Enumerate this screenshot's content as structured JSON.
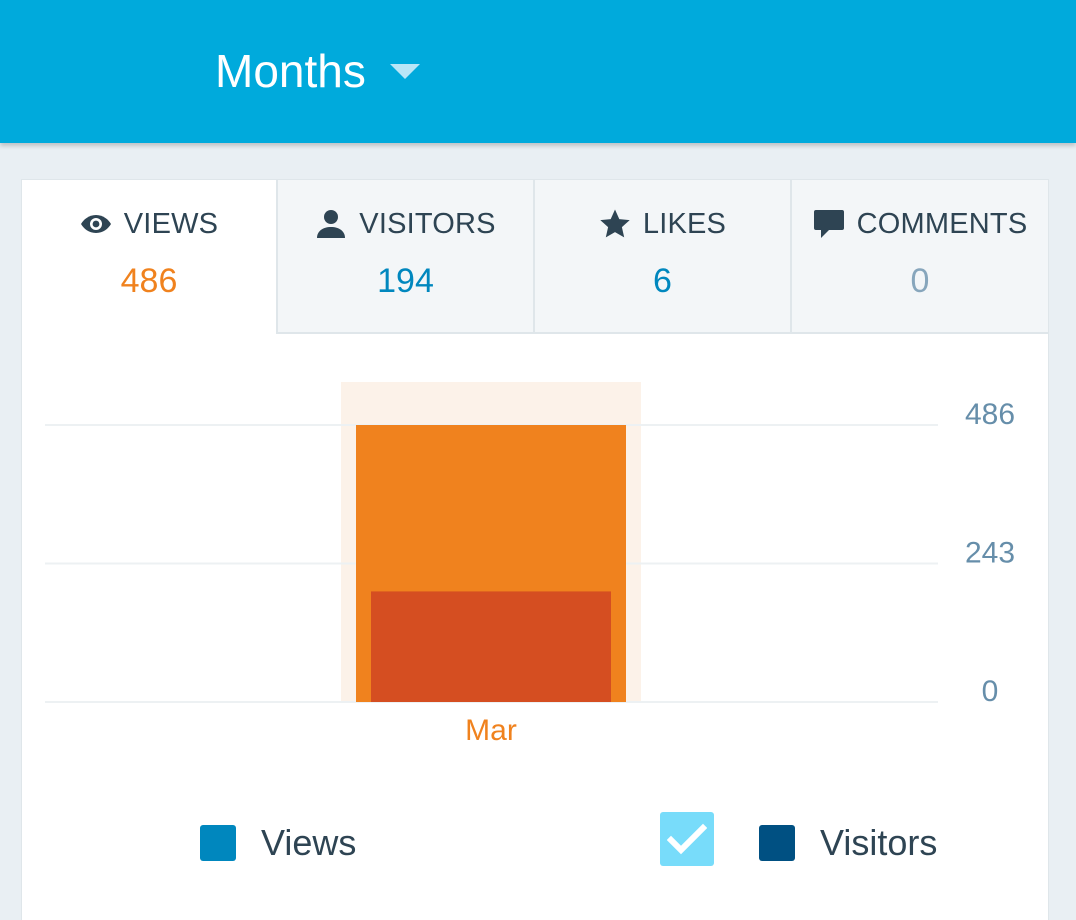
{
  "header": {
    "period_label": "Months"
  },
  "tabs": [
    {
      "label": "VIEWS",
      "value": "486",
      "icon": "eye-icon",
      "active": true,
      "value_color": "#f0821e"
    },
    {
      "label": "VISITORS",
      "value": "194",
      "icon": "person-icon",
      "active": false,
      "value_color": "#0087be"
    },
    {
      "label": "LIKES",
      "value": "6",
      "icon": "star-icon",
      "active": false,
      "value_color": "#0087be"
    },
    {
      "label": "COMMENTS",
      "value": "0",
      "icon": "comment-icon",
      "active": false,
      "value_color": "#87a6bc"
    }
  ],
  "chart_data": {
    "type": "bar",
    "categories": [
      "Mar"
    ],
    "series": [
      {
        "name": "Views",
        "values": [
          486
        ],
        "color": "#f0821e"
      },
      {
        "name": "Visitors",
        "values": [
          194
        ],
        "color": "#d54e21"
      }
    ],
    "y_ticks": [
      "486",
      "243",
      "0"
    ],
    "ylim": [
      0,
      486
    ],
    "highlight_color": "#fcf2e9",
    "grid": true
  },
  "legend": {
    "views_label": "Views",
    "visitors_label": "Visitors",
    "views_color": "#0087be",
    "visitors_color": "#005082",
    "visitors_checked": true
  }
}
